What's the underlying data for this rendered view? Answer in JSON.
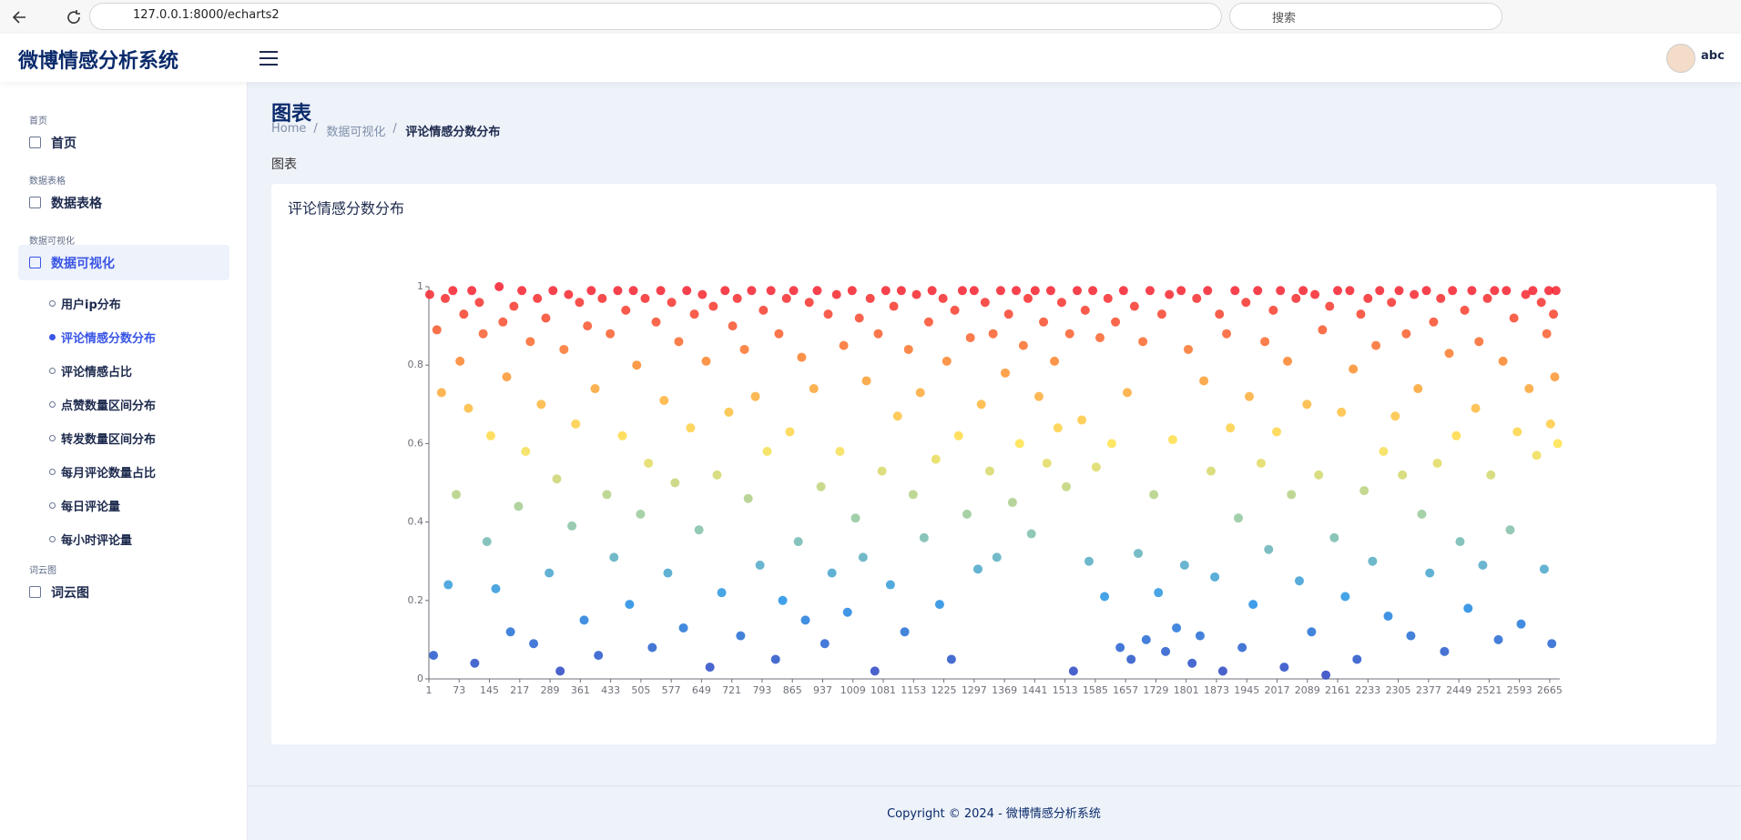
{
  "browser": {
    "url": "127.0.0.1:8000/echarts2",
    "search_placeholder": "搜索"
  },
  "header": {
    "title": "微博情感分析系统",
    "user": "abc"
  },
  "sidebar": {
    "sections": [
      {
        "label": "首页",
        "items": [
          {
            "label": "首页"
          }
        ]
      },
      {
        "label": "数据表格",
        "items": [
          {
            "label": "数据表格"
          }
        ]
      },
      {
        "label": "数据可视化",
        "items": [
          {
            "label": "数据可视化",
            "active": true,
            "children": [
              {
                "label": "用户ip分布"
              },
              {
                "label": "评论情感分数分布",
                "active": true
              },
              {
                "label": "评论情感占比"
              },
              {
                "label": "点赞数量区间分布"
              },
              {
                "label": "转发数量区间分布"
              },
              {
                "label": "每月评论数量占比"
              },
              {
                "label": "每日评论量"
              },
              {
                "label": "每小时评论量"
              }
            ]
          }
        ]
      },
      {
        "label": "词云图",
        "items": [
          {
            "label": "词云图"
          }
        ]
      }
    ]
  },
  "page": {
    "title": "图表",
    "breadcrumb": [
      "Home",
      "数据可视化",
      "评论情感分数分布"
    ],
    "caption": "图表"
  },
  "chart_data": {
    "type": "scatter",
    "title": "评论情感分数分布",
    "xlim": [
      1,
      2689
    ],
    "ylim": [
      0,
      1
    ],
    "xticks": [
      1,
      73,
      145,
      217,
      289,
      361,
      433,
      505,
      577,
      649,
      721,
      793,
      865,
      937,
      1009,
      1081,
      1153,
      1225,
      1297,
      1369,
      1441,
      1513,
      1585,
      1657,
      1729,
      1801,
      1873,
      1945,
      2017,
      2089,
      2161,
      2233,
      2305,
      2377,
      2449,
      2521,
      2593,
      2665
    ],
    "yticks": [
      0,
      0.2,
      0.4,
      0.6,
      0.8,
      1
    ],
    "visual_map": {
      "min": 0,
      "max": 1,
      "colors": [
        "#2a3fbf",
        "#1e90e6",
        "#8cc6a0",
        "#ffe24a",
        "#fb8a2c",
        "#f51c2e"
      ]
    },
    "series": [
      {
        "x": [
          3,
          12,
          20,
          31,
          40,
          47,
          58,
          66,
          75,
          84,
          95,
          103,
          110,
          121,
          130,
          139,
          148,
          160,
          168,
          177,
          186,
          195,
          203,
          214,
          222,
          231,
          242,
          250,
          259,
          268,
          279,
          287,
          296,
          305,
          313,
          322,
          333,
          341,
          350,
          359,
          370,
          378,
          387,
          396,
          404,
          413,
          424,
          432,
          441,
          450,
          461,
          469,
          478,
          487,
          495,
          504,
          515,
          523,
          532,
          541,
          552,
          560,
          569,
          578,
          586,
          595,
          606,
          614,
          623,
          632,
          643,
          651,
          660,
          669,
          677,
          686,
          697,
          705,
          714,
          723,
          734,
          742,
          751,
          760,
          768,
          777,
          788,
          796,
          805,
          814,
          825,
          833,
          842,
          851,
          859,
          868,
          879,
          887,
          896,
          905,
          916,
          924,
          933,
          942,
          950,
          959,
          970,
          978,
          987,
          996,
          1007,
          1015,
          1024,
          1033,
          1041,
          1050,
          1061,
          1069,
          1078,
          1087,
          1098,
          1106,
          1115,
          1124,
          1132,
          1141,
          1152,
          1160,
          1169,
          1178,
          1189,
          1197,
          1206,
          1215,
          1223,
          1232,
          1243,
          1251,
          1260,
          1269,
          1280,
          1288,
          1297,
          1306,
          1314,
          1323,
          1334,
          1342,
          1351,
          1360,
          1371,
          1379,
          1388,
          1397,
          1405,
          1414,
          1425,
          1433,
          1442,
          1451,
          1462,
          1470,
          1479,
          1488,
          1496,
          1505,
          1516,
          1524,
          1533,
          1542,
          1553,
          1561,
          1570,
          1579,
          1587,
          1596,
          1607,
          1615,
          1624,
          1633,
          1644,
          1652,
          1661,
          1670,
          1678,
          1687,
          1698,
          1706,
          1715,
          1724,
          1735,
          1743,
          1752,
          1761,
          1769,
          1778,
          1789,
          1797,
          1806,
          1815,
          1826,
          1834,
          1843,
          1852,
          1860,
          1869,
          1880,
          1888,
          1897,
          1906,
          1917,
          1925,
          1934,
          1943,
          1951,
          1960,
          1971,
          1979,
          1988,
          1997,
          2008,
          2016,
          2025,
          2034,
          2042,
          2051,
          2062,
          2070,
          2079,
          2088,
          2099,
          2107,
          2116,
          2125,
          2133,
          2142,
          2153,
          2161,
          2170,
          2179,
          2190,
          2198,
          2207,
          2216,
          2224,
          2233,
          2244,
          2252,
          2261,
          2270,
          2281,
          2289,
          2298,
          2307,
          2315,
          2324,
          2335,
          2343,
          2352,
          2361,
          2372,
          2380,
          2389,
          2398,
          2406,
          2415,
          2426,
          2434,
          2443,
          2452,
          2463,
          2471,
          2480,
          2489,
          2497,
          2506,
          2517,
          2525,
          2534,
          2543,
          2554,
          2562,
          2571,
          2580,
          2588,
          2597,
          2608,
          2616,
          2625,
          2634,
          2645,
          2652,
          2658,
          2663,
          2667,
          2670,
          2674,
          2677,
          2680,
          2684
        ],
        "values": [
          0.98,
          0.06,
          0.89,
          0.73,
          0.97,
          0.24,
          0.99,
          0.47,
          0.81,
          0.93,
          0.69,
          0.99,
          0.04,
          0.96,
          0.88,
          0.35,
          0.62,
          0.23,
          1,
          0.91,
          0.77,
          0.12,
          0.95,
          0.44,
          0.99,
          0.58,
          0.86,
          0.09,
          0.97,
          0.7,
          0.92,
          0.27,
          0.99,
          0.51,
          0.02,
          0.84,
          0.98,
          0.39,
          0.65,
          0.96,
          0.15,
          0.9,
          0.99,
          0.74,
          0.06,
          0.97,
          0.47,
          0.88,
          0.31,
          0.99,
          0.62,
          0.94,
          0.19,
          0.99,
          0.8,
          0.42,
          0.97,
          0.55,
          0.08,
          0.91,
          0.99,
          0.71,
          0.27,
          0.96,
          0.5,
          0.86,
          0.13,
          0.99,
          0.64,
          0.93,
          0.38,
          0.98,
          0.81,
          0.03,
          0.95,
          0.52,
          0.22,
          0.99,
          0.68,
          0.9,
          0.97,
          0.11,
          0.84,
          0.46,
          0.99,
          0.72,
          0.29,
          0.94,
          0.58,
          0.99,
          0.05,
          0.88,
          0.2,
          0.97,
          0.63,
          0.99,
          0.35,
          0.82,
          0.15,
          0.96,
          0.74,
          0.99,
          0.49,
          0.09,
          0.93,
          0.27,
          0.98,
          0.58,
          0.85,
          0.17,
          0.99,
          0.41,
          0.92,
          0.31,
          0.76,
          0.97,
          0.02,
          0.88,
          0.53,
          0.99,
          0.24,
          0.95,
          0.67,
          0.99,
          0.12,
          0.84,
          0.47,
          0.98,
          0.73,
          0.36,
          0.91,
          0.99,
          0.56,
          0.19,
          0.97,
          0.81,
          0.05,
          0.94,
          0.62,
          0.99,
          0.42,
          0.87,
          0.99,
          0.28,
          0.7,
          0.96,
          0.53,
          0.88,
          0.31,
          0.99,
          0.78,
          0.93,
          0.45,
          0.99,
          0.6,
          0.85,
          0.97,
          0.37,
          0.99,
          0.72,
          0.91,
          0.55,
          0.99,
          0.81,
          0.64,
          0.96,
          0.49,
          0.88,
          0.02,
          0.99,
          0.66,
          0.94,
          0.3,
          0.99,
          0.54,
          0.87,
          0.21,
          0.97,
          0.6,
          0.91,
          0.08,
          0.99,
          0.73,
          0.05,
          0.95,
          0.32,
          0.86,
          0.1,
          0.99,
          0.47,
          0.22,
          0.93,
          0.07,
          0.98,
          0.61,
          0.13,
          0.99,
          0.29,
          0.84,
          0.04,
          0.97,
          0.11,
          0.76,
          0.99,
          0.53,
          0.26,
          0.93,
          0.02,
          0.88,
          0.64,
          0.99,
          0.41,
          0.08,
          0.96,
          0.72,
          0.19,
          0.99,
          0.55,
          0.86,
          0.33,
          0.94,
          0.63,
          0.99,
          0.03,
          0.81,
          0.47,
          0.97,
          0.25,
          0.99,
          0.7,
          0.12,
          0.98,
          0.52,
          0.89,
          0.01,
          0.95,
          0.36,
          0.99,
          0.68,
          0.21,
          0.99,
          0.79,
          0.05,
          0.93,
          0.48,
          0.97,
          0.3,
          0.85,
          0.99,
          0.58,
          0.16,
          0.96,
          0.67,
          0.99,
          0.52,
          0.88,
          0.11,
          0.98,
          0.74,
          0.42,
          0.99,
          0.27,
          0.91,
          0.55,
          0.97,
          0.07,
          0.83,
          0.99,
          0.62,
          0.35,
          0.94,
          0.18,
          0.99,
          0.69,
          0.86,
          0.29,
          0.97,
          0.52,
          0.99,
          0.1,
          0.81,
          0.99,
          0.38,
          0.92,
          0.63,
          0.14,
          0.98,
          0.74,
          0.99,
          0.57,
          0.96,
          0.28,
          0.88,
          0.99,
          0.65,
          0.09,
          0.93,
          0.77,
          0.99,
          0.6
        ]
      }
    ]
  },
  "footer": {
    "copyright": "Copyright © 2024 - 微博情感分析系统"
  }
}
